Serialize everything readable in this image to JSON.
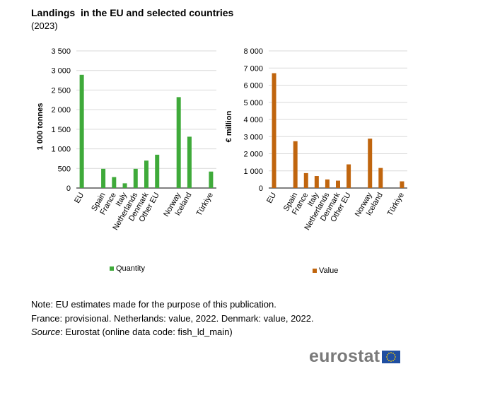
{
  "title": "Landings  in the EU and selected countries",
  "subtitle": "(2023)",
  "colors": {
    "quantity": "#3faa3a",
    "value": "#c0650e",
    "grid": "#d9d9d9",
    "axis": "#000000"
  },
  "chart_data": [
    {
      "type": "bar",
      "categories": [
        "EU",
        "",
        "Spain",
        "France",
        "Italy",
        "Netherlands",
        "Denmark",
        "Other EU",
        "",
        "Norway",
        "Iceland",
        "",
        "Türkiye"
      ],
      "series": [
        {
          "name": "Quantity",
          "values": [
            2890,
            null,
            490,
            280,
            120,
            490,
            700,
            850,
            null,
            2320,
            1310,
            null,
            420
          ]
        }
      ],
      "ylabel": "1 000 tonnes",
      "ylim": [
        0,
        3500
      ],
      "yticks": [
        0,
        500,
        1000,
        1500,
        2000,
        2500,
        3000,
        3500
      ],
      "ytick_labels": [
        "0",
        "500",
        "1 000",
        "1 500",
        "2 000",
        "2 500",
        "3 000",
        "3 500"
      ],
      "grid": true,
      "legend": "bottom"
    },
    {
      "type": "bar",
      "categories": [
        "EU",
        "",
        "Spain",
        "France",
        "Italy",
        "Netherlands",
        "Denmark",
        "Other EU",
        "",
        "Norway",
        "Iceland",
        "",
        "Türkiye"
      ],
      "series": [
        {
          "name": "Value",
          "values": [
            6700,
            null,
            2730,
            870,
            700,
            500,
            430,
            1380,
            null,
            2880,
            1170,
            null,
            390
          ]
        }
      ],
      "ylabel": "€ million",
      "ylim": [
        0,
        8000
      ],
      "yticks": [
        0,
        1000,
        2000,
        3000,
        4000,
        5000,
        6000,
        7000,
        8000
      ],
      "ytick_labels": [
        "0",
        "1 000",
        "2 000",
        "3 000",
        "4 000",
        "5 000",
        "6 000",
        "7 000",
        "8 000"
      ],
      "grid": true,
      "legend": "bottom"
    }
  ],
  "legend_labels": {
    "quantity": "Quantity",
    "value": "Value"
  },
  "notes": {
    "line1": "Note: EU estimates made for the purpose of this publication.",
    "line2": "France: provisional. Netherlands: value, 2022. Denmark: value, 2022.",
    "source_label": "Source",
    "source_text": ": Eurostat (online data code: fish_ld_main)"
  },
  "logo": {
    "text": "eurostat",
    "flag_icon": "eu-flag-icon"
  }
}
